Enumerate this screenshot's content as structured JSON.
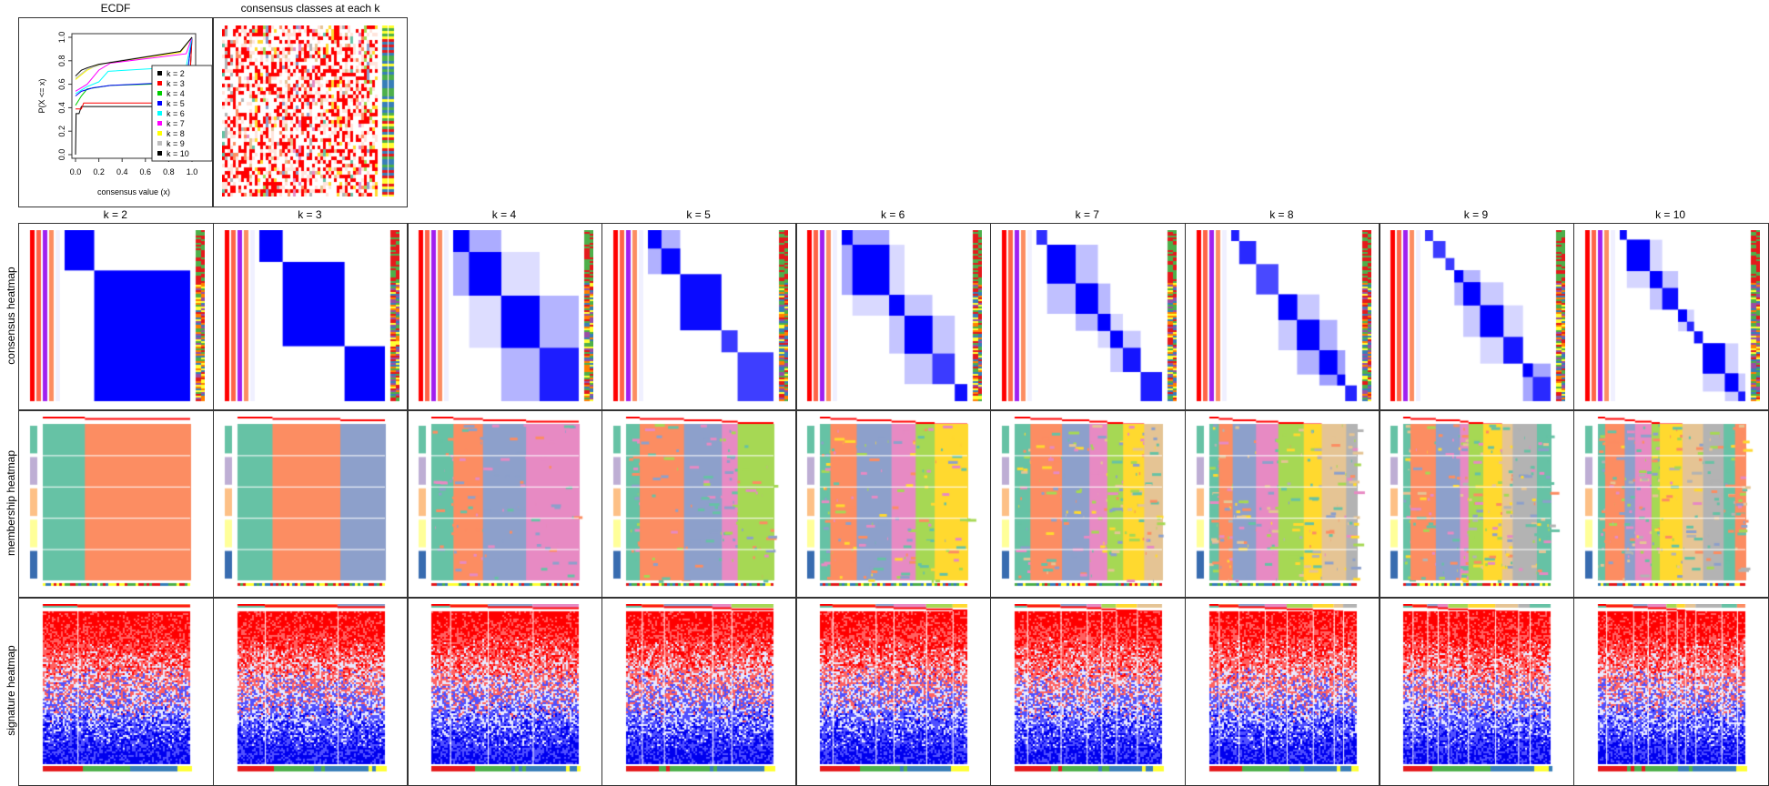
{
  "ecdf": {
    "title": "ECDF",
    "xlabel": "consensus value (x)",
    "ylabel": "P(X <= x)"
  },
  "classes_panel": {
    "title": "consensus classes at each k"
  },
  "row_labels": [
    "consensus heatmap",
    "membership heatmap",
    "signature heatmap"
  ],
  "columns": [
    "k = 2",
    "k = 3",
    "k = 4",
    "k = 5",
    "k = 6",
    "k = 7",
    "k = 8",
    "k = 9",
    "k = 10"
  ],
  "class_colors": [
    "#66C2A5",
    "#FC8D62",
    "#8DA0CB",
    "#E78AC3",
    "#A6D854",
    "#FFD92F",
    "#E5C494",
    "#B3B3B3",
    "#66C2A5",
    "#FC8D62"
  ],
  "chart_data": {
    "type": "line",
    "title": "ECDF",
    "xlabel": "consensus value (x)",
    "ylabel": "P(X <= x)",
    "xlim": [
      0,
      1
    ],
    "ylim": [
      0,
      1
    ],
    "xticks": [
      "0.0",
      "0.2",
      "0.4",
      "0.6",
      "0.8",
      "1.0"
    ],
    "yticks": [
      "0.0",
      "0.2",
      "0.4",
      "0.6",
      "0.8",
      "1.0"
    ],
    "legend_position": "right",
    "series": [
      {
        "name": "k = 2",
        "color": "#000000",
        "points": [
          [
            0,
            0
          ],
          [
            0.005,
            0.35
          ],
          [
            0.03,
            0.35
          ],
          [
            0.05,
            0.41
          ],
          [
            0.97,
            0.41
          ],
          [
            1,
            1
          ]
        ]
      },
      {
        "name": "k = 3",
        "color": "#FF0000",
        "points": [
          [
            0,
            0.39
          ],
          [
            0.05,
            0.39
          ],
          [
            0.07,
            0.44
          ],
          [
            0.97,
            0.44
          ],
          [
            1,
            1
          ]
        ]
      },
      {
        "name": "k = 4",
        "color": "#00CD00",
        "points": [
          [
            0,
            0.42
          ],
          [
            0.05,
            0.5
          ],
          [
            0.1,
            0.56
          ],
          [
            0.3,
            0.59
          ],
          [
            0.95,
            0.61
          ],
          [
            1,
            1
          ]
        ]
      },
      {
        "name": "k = 5",
        "color": "#0000FF",
        "points": [
          [
            0,
            0.5
          ],
          [
            0.05,
            0.54
          ],
          [
            0.15,
            0.57
          ],
          [
            0.3,
            0.59
          ],
          [
            0.95,
            0.62
          ],
          [
            1,
            1
          ]
        ]
      },
      {
        "name": "k = 6",
        "color": "#00FFFF",
        "points": [
          [
            0,
            0.52
          ],
          [
            0.1,
            0.58
          ],
          [
            0.2,
            0.62
          ],
          [
            0.28,
            0.71
          ],
          [
            0.95,
            0.75
          ],
          [
            1,
            1
          ]
        ]
      },
      {
        "name": "k = 7",
        "color": "#FF00FF",
        "points": [
          [
            0,
            0.54
          ],
          [
            0.1,
            0.6
          ],
          [
            0.2,
            0.72
          ],
          [
            0.3,
            0.78
          ],
          [
            0.95,
            0.86
          ],
          [
            1,
            1
          ]
        ]
      },
      {
        "name": "k = 8",
        "color": "#FFFF00",
        "points": [
          [
            0,
            0.64
          ],
          [
            0.1,
            0.72
          ],
          [
            0.2,
            0.77
          ],
          [
            0.4,
            0.8
          ],
          [
            0.9,
            0.87
          ],
          [
            1,
            1
          ]
        ]
      },
      {
        "name": "k = 9",
        "color": "#BEBEBE",
        "points": [
          [
            0,
            0.65
          ],
          [
            0.1,
            0.73
          ],
          [
            0.3,
            0.79
          ],
          [
            0.9,
            0.88
          ],
          [
            1,
            1
          ]
        ]
      },
      {
        "name": "k = 10",
        "color": "#000000",
        "points": [
          [
            0,
            0.67
          ],
          [
            0.05,
            0.72
          ],
          [
            0.1,
            0.74
          ],
          [
            0.2,
            0.77
          ],
          [
            0.4,
            0.8
          ],
          [
            0.9,
            0.88
          ],
          [
            1,
            1
          ]
        ]
      }
    ]
  }
}
